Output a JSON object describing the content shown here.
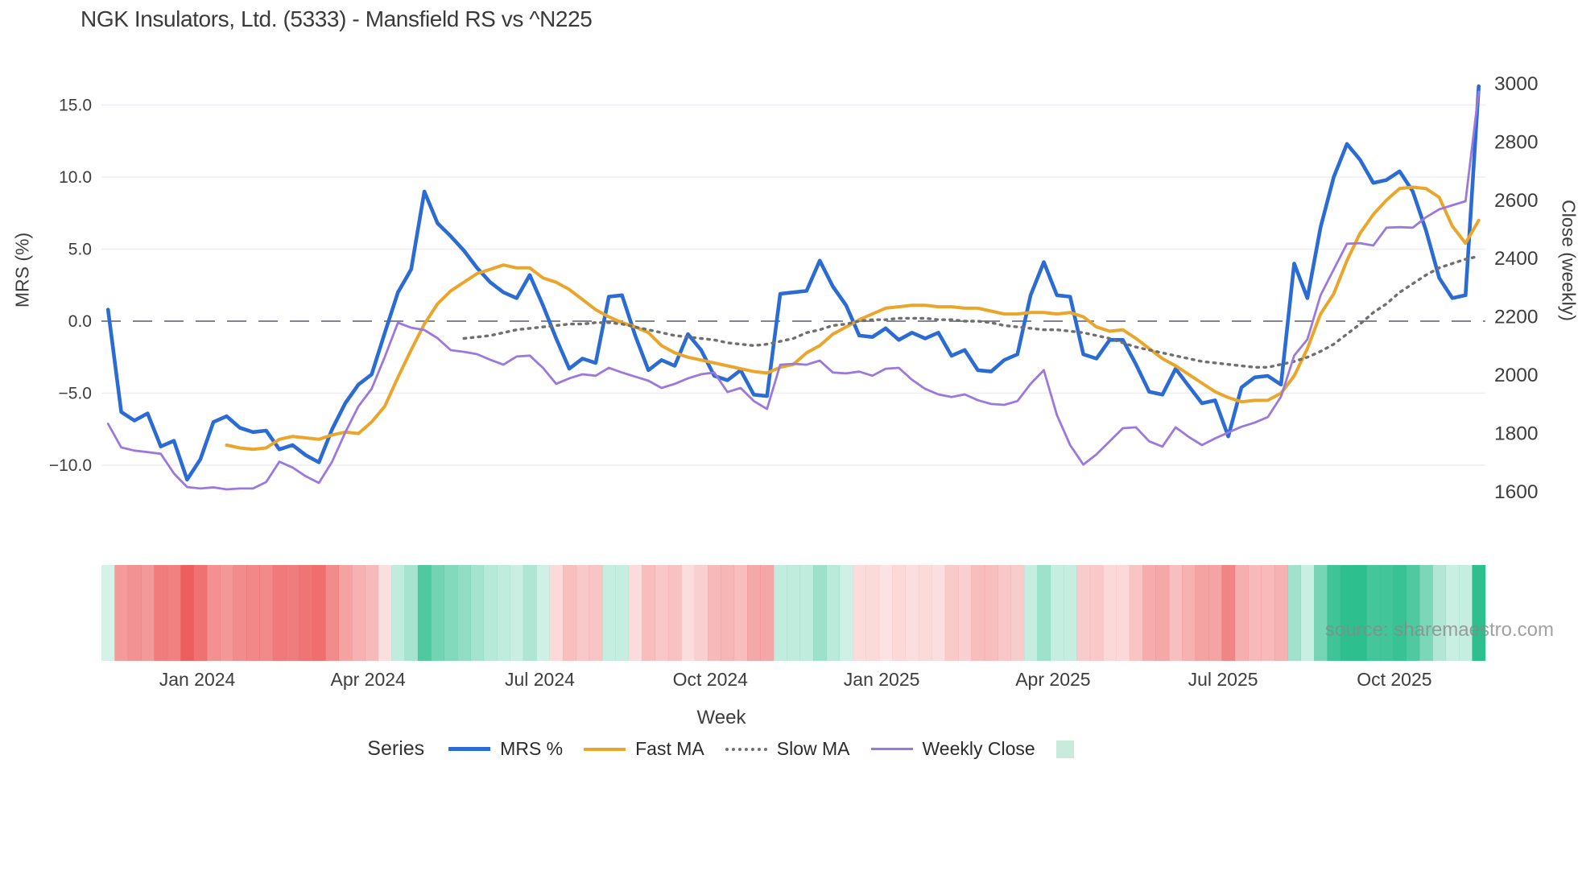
{
  "title": "NGK Insulators, Ltd. (5333) - Mansfield RS vs ^N225",
  "watermark": "source: sharemaestro.com",
  "axes": {
    "left": {
      "title": "MRS (%)",
      "tick_labels": [
        "15.0",
        "10.0",
        "5.0",
        "0.0",
        "−5.0",
        "−10.0"
      ]
    },
    "right": {
      "title": "Close (weekly)",
      "tick_labels": [
        "3000",
        "2800",
        "2600",
        "2400",
        "2200",
        "2000",
        "1800",
        "1600"
      ]
    },
    "x": {
      "title": "Week"
    }
  },
  "legend": {
    "label": "Series",
    "items": [
      {
        "name": "MRS %",
        "swatch": "line",
        "color": "#2b6bd4",
        "thickness": 5,
        "dash": "solid"
      },
      {
        "name": "Fast MA",
        "swatch": "line",
        "color": "#e9a62b",
        "thickness": 4,
        "dash": "solid"
      },
      {
        "name": "Slow MA",
        "swatch": "line",
        "color": "#6f6f6f",
        "thickness": 4,
        "dash": "dotted"
      },
      {
        "name": "Weekly Close",
        "swatch": "line",
        "color": "#9b78dd",
        "thickness": 3,
        "dash": "solid"
      },
      {
        "name": "",
        "swatch": "square",
        "color": "#c7ecdc"
      }
    ]
  },
  "chart_data": {
    "type": "line",
    "title": "NGK Insulators, Ltd. (5333) - Mansfield RS vs ^N225",
    "x_unit": "week_index",
    "n_weeks": 105,
    "grid": "horizontal-only",
    "left_axis": {
      "label": "MRS (%)",
      "ticks": [
        15.0,
        10.0,
        5.0,
        0.0,
        -5.0,
        -10.0
      ],
      "zero_line": "dashed",
      "ylim": [
        -12.6,
        17.5
      ]
    },
    "right_axis": {
      "label": "Close (weekly)",
      "ticks": [
        3000,
        2800,
        2600,
        2400,
        2200,
        2000,
        1800,
        1600
      ],
      "ylim": [
        1558,
        3050
      ]
    },
    "x_ticks": [
      {
        "label": "Jan 2024",
        "week_index": 7.27
      },
      {
        "label": "Apr 2024",
        "week_index": 20.23
      },
      {
        "label": "Jul 2024",
        "week_index": 33.26
      },
      {
        "label": "Oct 2024",
        "week_index": 46.2
      },
      {
        "label": "Jan 2025",
        "week_index": 59.2
      },
      {
        "label": "Apr 2025",
        "week_index": 72.2
      },
      {
        "label": "Jul 2025",
        "week_index": 85.1
      },
      {
        "label": "Oct 2025",
        "week_index": 98.1
      }
    ],
    "series": [
      {
        "name": "MRS %",
        "axis": "left",
        "color": "#2b6bd4",
        "style": "solid",
        "width": 4.6,
        "values": [
          0.8,
          -6.3,
          -6.9,
          -6.4,
          -8.7,
          -8.3,
          -11.0,
          -9.6,
          -7.0,
          -6.6,
          -7.4,
          -7.7,
          -7.6,
          -8.9,
          -8.6,
          -9.3,
          -9.8,
          -7.5,
          -5.7,
          -4.4,
          -3.7,
          -0.8,
          2.0,
          3.6,
          9.0,
          6.8,
          5.9,
          4.9,
          3.7,
          2.7,
          2.0,
          1.6,
          3.2,
          1.1,
          -1.2,
          -3.3,
          -2.6,
          -2.9,
          1.7,
          1.8,
          -1.0,
          -3.4,
          -2.7,
          -3.1,
          -0.9,
          -2.0,
          -3.8,
          -4.1,
          -3.4,
          -5.1,
          -5.2,
          1.9,
          2.0,
          2.1,
          4.2,
          2.4,
          1.1,
          -1.0,
          -1.1,
          -0.5,
          -1.3,
          -0.8,
          -1.2,
          -0.8,
          -2.4,
          -2.0,
          -3.4,
          -3.5,
          -2.7,
          -2.3,
          1.8,
          4.1,
          1.8,
          1.7,
          -2.3,
          -2.6,
          -1.3,
          -1.3,
          -3.0,
          -4.9,
          -5.1,
          -3.3,
          -4.5,
          -5.7,
          -5.5,
          -8.0,
          -4.6,
          -3.9,
          -3.8,
          -4.4,
          4.0,
          1.6,
          6.5,
          10.0,
          12.3,
          11.2,
          9.6,
          9.8,
          10.4,
          9.0,
          6.3,
          3.0,
          1.6,
          1.8,
          16.3
        ]
      },
      {
        "name": "Fast MA",
        "axis": "left",
        "color": "#e9a62b",
        "style": "solid",
        "width": 4.0,
        "values": [
          null,
          null,
          null,
          null,
          null,
          null,
          null,
          null,
          null,
          -8.6,
          -8.8,
          -8.9,
          -8.8,
          -8.2,
          -8.0,
          -8.1,
          -8.2,
          -7.9,
          -7.7,
          -7.8,
          -7.0,
          -5.9,
          -3.9,
          -2.0,
          -0.2,
          1.2,
          2.1,
          2.7,
          3.3,
          3.6,
          3.9,
          3.7,
          3.7,
          3.0,
          2.7,
          2.2,
          1.5,
          0.8,
          0.3,
          -0.1,
          -0.4,
          -0.8,
          -1.7,
          -2.2,
          -2.5,
          -2.7,
          -2.9,
          -3.1,
          -3.3,
          -3.5,
          -3.6,
          -3.2,
          -3.0,
          -2.2,
          -1.7,
          -0.9,
          -0.4,
          0.1,
          0.5,
          0.9,
          1.0,
          1.1,
          1.1,
          1.0,
          1.0,
          0.9,
          0.9,
          0.7,
          0.5,
          0.5,
          0.6,
          0.6,
          0.5,
          0.6,
          0.3,
          -0.4,
          -0.7,
          -0.6,
          -1.2,
          -1.9,
          -2.6,
          -3.1,
          -3.7,
          -4.3,
          -4.9,
          -5.3,
          -5.6,
          -5.5,
          -5.5,
          -5.0,
          -3.8,
          -1.9,
          0.5,
          1.9,
          4.2,
          6.1,
          7.4,
          8.4,
          9.2,
          9.3,
          9.2,
          8.6,
          6.6,
          5.4,
          7.0
        ]
      },
      {
        "name": "Slow MA",
        "axis": "left",
        "color": "#6f6f6f",
        "style": "dotted",
        "width": 3.4,
        "values": [
          null,
          null,
          null,
          null,
          null,
          null,
          null,
          null,
          null,
          null,
          null,
          null,
          null,
          null,
          null,
          null,
          null,
          null,
          null,
          null,
          null,
          null,
          null,
          null,
          null,
          null,
          null,
          -1.2,
          -1.1,
          -1.0,
          -0.8,
          -0.6,
          -0.5,
          -0.4,
          -0.3,
          -0.2,
          -0.2,
          -0.1,
          -0.1,
          -0.2,
          -0.4,
          -0.6,
          -0.8,
          -1.0,
          -1.1,
          -1.2,
          -1.3,
          -1.5,
          -1.6,
          -1.7,
          -1.6,
          -1.4,
          -1.2,
          -0.8,
          -0.6,
          -0.3,
          -0.2,
          0.0,
          0.1,
          0.1,
          0.2,
          0.2,
          0.2,
          0.1,
          0.1,
          0.0,
          0.0,
          -0.1,
          -0.3,
          -0.4,
          -0.5,
          -0.6,
          -0.6,
          -0.7,
          -0.8,
          -1.0,
          -1.2,
          -1.5,
          -1.8,
          -2.0,
          -2.2,
          -2.4,
          -2.6,
          -2.8,
          -2.9,
          -3.0,
          -3.1,
          -3.2,
          -3.2,
          -3.0,
          -2.8,
          -2.5,
          -2.1,
          -1.6,
          -0.9,
          -0.2,
          0.6,
          1.2,
          2.0,
          2.6,
          3.2,
          3.7,
          4.0,
          4.3,
          4.5
        ]
      },
      {
        "name": "Weekly Close",
        "axis": "right",
        "color": "#9b78dd",
        "style": "solid",
        "width": 2.8,
        "values": [
          1830,
          1749,
          1738,
          1733,
          1727,
          1660,
          1613,
          1608,
          1612,
          1605,
          1608,
          1608,
          1630,
          1700,
          1680,
          1650,
          1627,
          1700,
          1800,
          1890,
          1950,
          2060,
          2177,
          2160,
          2152,
          2124,
          2083,
          2077,
          2069,
          2050,
          2033,
          2061,
          2064,
          2022,
          1967,
          1986,
          2000,
          1995,
          2022,
          2006,
          1992,
          1978,
          1953,
          1967,
          1986,
          2000,
          2006,
          1939,
          1953,
          1908,
          1881,
          2033,
          2036,
          2033,
          2047,
          2006,
          2003,
          2009,
          1995,
          2019,
          2022,
          1981,
          1950,
          1931,
          1922,
          1931,
          1911,
          1898,
          1895,
          1908,
          1967,
          2014,
          1860,
          1757,
          1690,
          1725,
          1770,
          1815,
          1818,
          1770,
          1752,
          1818,
          1785,
          1757,
          1780,
          1800,
          1820,
          1834,
          1853,
          1923,
          2064,
          2120,
          2271,
          2360,
          2448,
          2450,
          2442,
          2503,
          2505,
          2503,
          2539,
          2566,
          2580,
          2594,
          2970
        ]
      }
    ],
    "heatmap_strip": {
      "basis": "MRS % sign and magnitude per week",
      "positive_color": "#2ebf8e",
      "negative_color": "#ed5f5f",
      "legend_position": "bottom"
    }
  }
}
